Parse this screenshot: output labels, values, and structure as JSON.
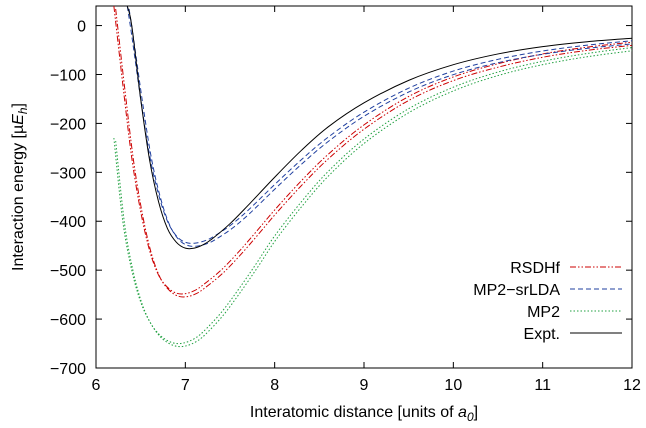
{
  "chart_data": {
    "type": "line",
    "xlabel": "Interatomic distance [units of a0]",
    "xlabel_parts": [
      "Interatomic distance [units of ",
      "a",
      "0",
      "]"
    ],
    "ylabel": "Interaction energy [µEh]",
    "ylabel_parts": [
      "Interaction energy [µ",
      "E",
      "h",
      "]"
    ],
    "xlim": [
      6,
      12
    ],
    "ylim": [
      -700,
      40
    ],
    "xticks": [
      6,
      7,
      8,
      9,
      10,
      11,
      12
    ],
    "yticks": [
      0,
      -100,
      -200,
      -300,
      -400,
      -500,
      -600,
      -700
    ],
    "x_tick_labels": [
      "6",
      "7",
      "8",
      "9",
      "10",
      "11",
      "12"
    ],
    "y_tick_labels": [
      "0",
      "−100",
      "−200",
      "−300",
      "−400",
      "−500",
      "−600",
      "−700"
    ],
    "grid": false,
    "legend_position": "bottom-right",
    "series": [
      {
        "name": "RSDHf",
        "color": "#cc0000",
        "style": "dash-dot-dot",
        "doubled": true,
        "x": [
          6.2,
          6.3,
          6.4,
          6.5,
          6.6,
          6.7,
          6.8,
          6.9,
          7.0,
          7.1,
          7.2,
          7.4,
          7.6,
          7.8,
          8.0,
          8.3,
          8.6,
          9.0,
          9.5,
          10.0,
          10.5,
          11.0,
          11.5,
          12.0
        ],
        "y": [
          40,
          -120,
          -270,
          -380,
          -460,
          -510,
          -535,
          -547,
          -548,
          -542,
          -530,
          -500,
          -462,
          -420,
          -377,
          -317,
          -263,
          -203,
          -145,
          -105,
          -78,
          -58,
          -44,
          -34
        ]
      },
      {
        "name": "MP2−srLDA",
        "color": "#1f3f9f",
        "style": "dashed",
        "doubled": true,
        "x": [
          6.35,
          6.4,
          6.5,
          6.6,
          6.7,
          6.8,
          6.9,
          7.0,
          7.1,
          7.2,
          7.3,
          7.5,
          7.7,
          8.0,
          8.3,
          8.6,
          9.0,
          9.5,
          10.0,
          10.5,
          11.0,
          11.5,
          12.0
        ],
        "y": [
          40,
          -20,
          -150,
          -265,
          -345,
          -400,
          -430,
          -443,
          -445,
          -441,
          -433,
          -409,
          -378,
          -325,
          -274,
          -228,
          -177,
          -128,
          -93,
          -69,
          -52,
          -40,
          -31
        ]
      },
      {
        "name": "MP2",
        "color": "#20a040",
        "style": "dotted",
        "doubled": true,
        "x": [
          6.2,
          6.3,
          6.4,
          6.5,
          6.6,
          6.7,
          6.8,
          6.9,
          7.0,
          7.1,
          7.2,
          7.4,
          7.6,
          7.8,
          8.0,
          8.3,
          8.6,
          9.0,
          9.5,
          10.0,
          10.5,
          11.0,
          11.5,
          12.0
        ],
        "y": [
          -230,
          -400,
          -500,
          -565,
          -605,
          -630,
          -644,
          -650,
          -648,
          -640,
          -626,
          -587,
          -538,
          -485,
          -430,
          -360,
          -298,
          -232,
          -170,
          -126,
          -95,
          -73,
          -57,
          -45
        ]
      },
      {
        "name": "Expt.",
        "color": "#000000",
        "style": "solid",
        "doubled": false,
        "x": [
          6.35,
          6.4,
          6.5,
          6.6,
          6.7,
          6.8,
          6.9,
          7.0,
          7.1,
          7.2,
          7.3,
          7.5,
          7.7,
          8.0,
          8.3,
          8.6,
          9.0,
          9.5,
          10.0,
          10.5,
          11.0,
          11.5,
          12.0
        ],
        "y": [
          40,
          0,
          -150,
          -275,
          -360,
          -415,
          -443,
          -455,
          -455,
          -448,
          -436,
          -405,
          -368,
          -310,
          -255,
          -207,
          -158,
          -112,
          -80,
          -58,
          -43,
          -33,
          -26
        ]
      }
    ]
  }
}
